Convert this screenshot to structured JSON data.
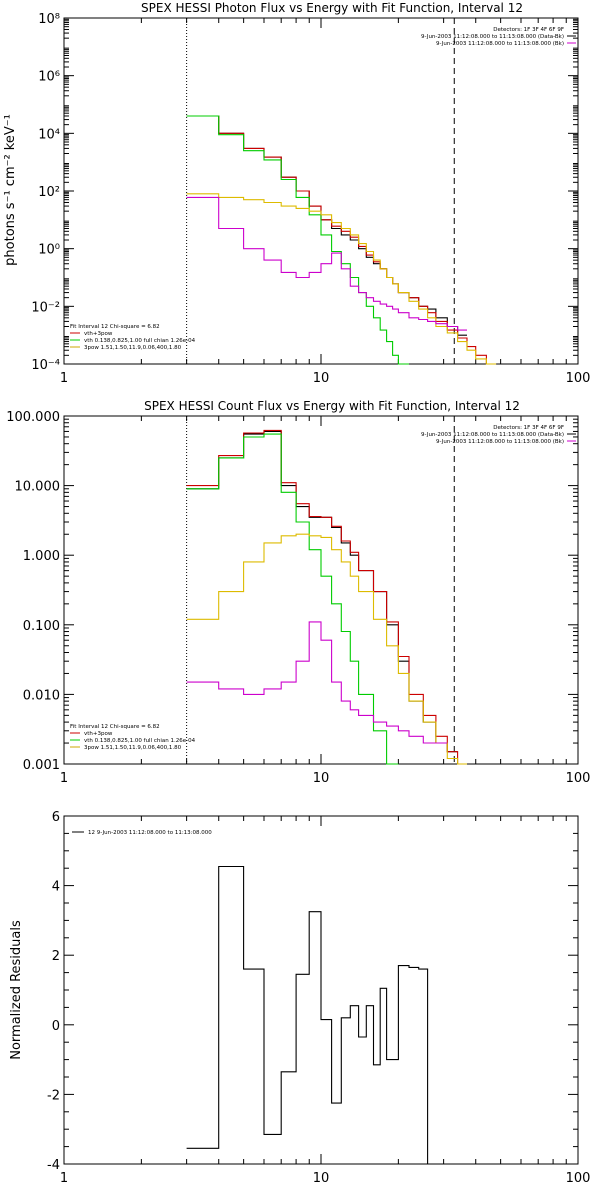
{
  "chart_data": [
    {
      "type": "line",
      "title": "SPEX HESSI Photon Flux vs Energy with Fit Function, Interval 12",
      "ylabel": "photons s⁻¹ cm⁻² keV⁻¹",
      "xscale": "log",
      "yscale": "log",
      "xlim": [
        1,
        100
      ],
      "ylim": [
        0.0001,
        100000000
      ],
      "xticks": [
        1,
        10,
        100
      ],
      "xtick_labels": [
        "1",
        "10",
        "100"
      ],
      "yticks": [
        0.0001,
        0.01,
        1,
        100,
        10000,
        1000000,
        100000000
      ],
      "ytick_labels": [
        "10⁻⁴",
        "10⁻²",
        "10⁰",
        "10²",
        "10⁴",
        "10⁶",
        "10⁸"
      ],
      "vlines": [
        {
          "x": 3.0,
          "style": "dotted"
        },
        {
          "x": 33,
          "style": "dashed"
        }
      ],
      "legend_top_right": [
        {
          "text": "Detectors: 1F 3F 4F 6F 9F",
          "color": "#000000"
        },
        {
          "text": "9-Jun-2003 11:12:08.000 to 11:13:08.000 (Data-Bk)",
          "color": "#000000"
        },
        {
          "text": "9-Jun-2003 11:12:08.000 to 11:13:08.000 (Bk)",
          "color": "#cc00cc"
        }
      ],
      "legend_bottom_left": [
        {
          "text": "Fit Interval 12   Chi-square = 6.82",
          "color": "#000000"
        },
        {
          "text": "vth+3pow",
          "color": "#cc0000"
        },
        {
          "text": "vth 0.138,0.825,1.00  full chian 1.26e-04",
          "color": "#00cc00"
        },
        {
          "text": "3pow 1.51,1.50,11.9,0.06,400,1.80",
          "color": "#ccaa00"
        }
      ],
      "edges": [
        3.0,
        3.5,
        4.0,
        4.5,
        5.0,
        5.5,
        6.0,
        6.5,
        7.0,
        7.5,
        8.0,
        8.5,
        9.0,
        9.5,
        10.0,
        10.5,
        11.0,
        12.0,
        13.0,
        14.0,
        15.0,
        16.0,
        17.0,
        18.0,
        19.0,
        20.0,
        22.0,
        24.0,
        26.0,
        28.0,
        31.0,
        34.0,
        37.0,
        40.0,
        44.0,
        48.0
      ],
      "series": [
        {
          "name": "",
          "color": "#000000",
          "values": [
            40000,
            40000,
            10000,
            10000,
            3000,
            3000,
            1500,
            1500,
            300,
            300,
            100,
            100,
            30,
            30,
            10,
            10,
            5,
            3,
            2,
            1,
            0.5,
            0.3,
            0.2,
            0.1,
            0.06,
            0.03,
            0.02,
            0.01,
            0.008,
            0.004,
            0.002,
            0.001
          ]
        },
        {
          "name": "",
          "color": "#cc0000",
          "values": [
            40000,
            40000,
            10000,
            10000,
            3000,
            3000,
            1500,
            1500,
            300,
            300,
            100,
            100,
            30,
            30,
            10,
            10,
            6,
            4,
            2.5,
            1.2,
            0.6,
            0.35,
            0.2,
            0.1,
            0.06,
            0.03,
            0.02,
            0.01,
            0.006,
            0.003,
            0.0015,
            0.0008,
            0.0004,
            0.0002,
            0.0001
          ]
        },
        {
          "name": "",
          "color": "#00cc00",
          "values": [
            40000,
            40000,
            9000,
            9000,
            2500,
            2500,
            1200,
            1200,
            250,
            250,
            60,
            60,
            15,
            15,
            3,
            3,
            0.8,
            0.3,
            0.1,
            0.03,
            0.01,
            0.004,
            0.0015,
            0.0006,
            0.0002,
            0.0001
          ]
        },
        {
          "name": "",
          "color": "#ddbb00",
          "values": [
            80,
            80,
            60,
            60,
            50,
            50,
            40,
            40,
            30,
            30,
            25,
            25,
            20,
            20,
            15,
            15,
            8,
            5,
            3,
            1.5,
            0.8,
            0.4,
            0.2,
            0.1,
            0.06,
            0.03,
            0.015,
            0.008,
            0.004,
            0.002,
            0.0012,
            0.0006,
            0.0003,
            0.00015,
            0.0001
          ]
        },
        {
          "name": "",
          "color": "#cc00cc",
          "values": [
            60,
            60,
            5,
            5,
            1,
            1,
            0.4,
            0.4,
            0.15,
            0.15,
            0.1,
            0.1,
            0.15,
            0.15,
            0.3,
            0.3,
            0.7,
            0.2,
            0.05,
            0.03,
            0.02,
            0.015,
            0.012,
            0.01,
            0.008,
            0.006,
            0.004,
            0.0035,
            0.003,
            0.0025,
            0.002,
            0.0015
          ]
        }
      ]
    },
    {
      "type": "line",
      "title": "SPEX HESSI Count Flux vs Energy with Fit Function, Interval 12",
      "ylabel": "",
      "xscale": "log",
      "yscale": "log",
      "xlim": [
        1,
        100
      ],
      "ylim": [
        0.001,
        100
      ],
      "xticks": [
        1,
        10,
        100
      ],
      "xtick_labels": [
        "1",
        "10",
        "100"
      ],
      "yticks": [
        0.001,
        0.01,
        0.1,
        1,
        10,
        100
      ],
      "ytick_labels": [
        "0.001",
        "0.010",
        "0.100",
        "1.000",
        "10.000",
        "100.000"
      ],
      "vlines": [
        {
          "x": 3.0,
          "style": "dotted"
        },
        {
          "x": 33,
          "style": "dashed"
        }
      ],
      "legend_top_right": [
        {
          "text": "Detectors: 1F 3F 4F 6F 9F",
          "color": "#000000"
        },
        {
          "text": "9-Jun-2003 11:12:08.000 to 11:13:08.000 (Data-Bk)",
          "color": "#000000"
        },
        {
          "text": "9-Jun-2003 11:12:08.000 to 11:13:08.000 (Bk)",
          "color": "#cc00cc"
        }
      ],
      "legend_bottom_left": [
        {
          "text": "Fit Interval 12   Chi-square = 6.82",
          "color": "#000000"
        },
        {
          "text": "vth+3pow",
          "color": "#cc0000"
        },
        {
          "text": "vth 0.138,0.825,1.00  full chian 1.26e-04",
          "color": "#00cc00"
        },
        {
          "text": "3pow 1.51,1.50,11.9,0.06,400,1.80",
          "color": "#ccaa00"
        }
      ],
      "edges": [
        3.0,
        4.0,
        5.0,
        6.0,
        7.0,
        8.0,
        9.0,
        10.0,
        11.0,
        12.0,
        13.0,
        14.0,
        16.0,
        18.0,
        20.0,
        22.0,
        25.0,
        28.0,
        31.0,
        34.0,
        37.0,
        41.0,
        45.0
      ],
      "series": [
        {
          "name": "",
          "color": "#000000",
          "values": [
            9,
            25,
            55,
            60,
            10,
            5,
            3.5,
            3.5,
            2.5,
            1.5,
            1.0,
            0.6,
            0.3,
            0.1,
            0.03,
            0.008,
            0.004,
            0.002,
            0.0015
          ]
        },
        {
          "name": "",
          "color": "#cc0000",
          "values": [
            10,
            27,
            57,
            62,
            11,
            5.5,
            3.6,
            3.5,
            2.6,
            1.6,
            1.1,
            0.6,
            0.3,
            0.11,
            0.035,
            0.01,
            0.005,
            0.0025,
            0.0015,
            0.001
          ]
        },
        {
          "name": "",
          "color": "#00cc00",
          "values": [
            9,
            25,
            50,
            55,
            8,
            3,
            1.2,
            0.5,
            0.2,
            0.08,
            0.03,
            0.01,
            0.003,
            0.001
          ]
        },
        {
          "name": "",
          "color": "#ddbb00",
          "values": [
            0.12,
            0.3,
            0.8,
            1.5,
            1.9,
            2.0,
            1.9,
            1.8,
            1.2,
            0.8,
            0.5,
            0.3,
            0.12,
            0.05,
            0.02,
            0.008,
            0.004,
            0.002,
            0.0012,
            0.001
          ]
        },
        {
          "name": "",
          "color": "#cc00cc",
          "values": [
            0.015,
            0.012,
            0.01,
            0.012,
            0.015,
            0.03,
            0.11,
            0.06,
            0.015,
            0.008,
            0.006,
            0.005,
            0.004,
            0.0035,
            0.003,
            0.0025,
            0.002,
            0.002
          ]
        }
      ]
    },
    {
      "type": "line",
      "title": "",
      "ylabel": "Normalized Residuals",
      "xscale": "log",
      "yscale": "linear",
      "xlim": [
        1,
        100
      ],
      "ylim": [
        -4,
        6
      ],
      "xticks": [
        1,
        10,
        100
      ],
      "xtick_labels": [
        "1",
        "10",
        "100"
      ],
      "yticks": [
        -4,
        -2,
        0,
        2,
        4,
        6
      ],
      "ytick_labels": [
        "-4",
        "-2",
        "0",
        "2",
        "4",
        "6"
      ],
      "legend_top_left": [
        {
          "text": "12  9-Jun-2003 11:12:08.000 to 11:13:08.000",
          "color": "#000000"
        }
      ],
      "edges": [
        3.0,
        4.0,
        5.0,
        6.0,
        7.0,
        8.0,
        9.0,
        10.0,
        11.0,
        12.0,
        13.0,
        14.0,
        15.0,
        16.0,
        17.0,
        18.0,
        20.0,
        22.0,
        24.0,
        26.0,
        28.0,
        31.0,
        34.0
      ],
      "series": [
        {
          "name": "",
          "color": "#000000",
          "values": [
            -3.55,
            4.55,
            1.6,
            -3.15,
            -1.35,
            1.45,
            3.25,
            0.15,
            -2.25,
            0.2,
            0.55,
            -0.35,
            0.55,
            -1.15,
            1.05,
            -1.0,
            1.7,
            1.65,
            1.6,
            -4
          ]
        }
      ]
    }
  ]
}
